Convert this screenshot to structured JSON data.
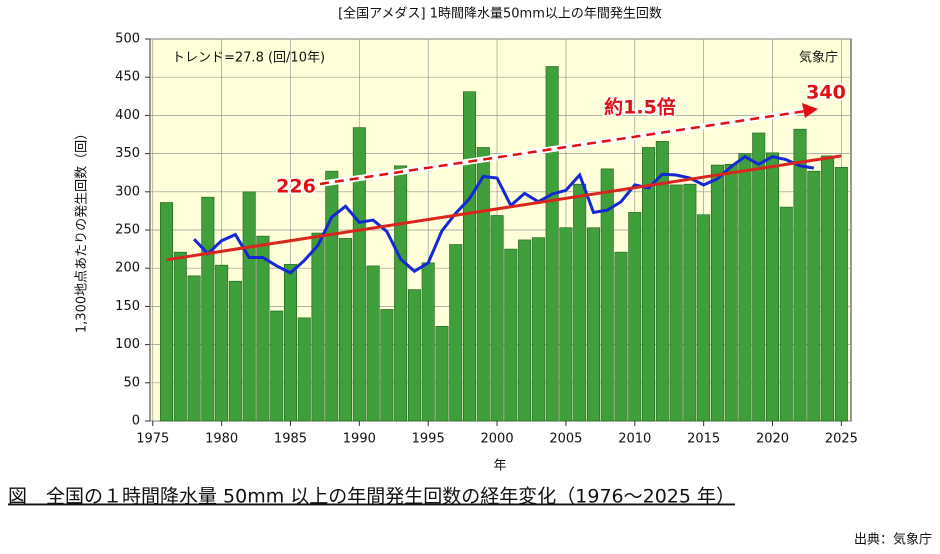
{
  "chart_data": {
    "type": "bar",
    "title": "[全国アメダス] 1時間降水量50mm以上の年間発生回数",
    "x_label": "年",
    "y_label": "1,300地点あたりの発生回数（回）",
    "trend_text": "トレンド=27.8 (回/10年)",
    "agency": "気象庁",
    "start_label": "226",
    "end_label": "340",
    "ratio_label": "約1.5倍",
    "background": "#ffffd9",
    "grid": true,
    "xlim": [
      1974.8,
      2025.7
    ],
    "xticks": [
      1975,
      1980,
      1985,
      1990,
      1995,
      2000,
      2005,
      2010,
      2015,
      2020,
      2025
    ],
    "ylim": [
      0,
      500
    ],
    "yticks": [
      0,
      50,
      100,
      150,
      200,
      250,
      300,
      350,
      400,
      450,
      500
    ],
    "series": [
      {
        "kind": "bar",
        "color": "#3f9f3a",
        "x": [
          1976,
          1977,
          1978,
          1979,
          1980,
          1981,
          1982,
          1983,
          1984,
          1985,
          1986,
          1987,
          1988,
          1989,
          1990,
          1991,
          1992,
          1993,
          1994,
          1995,
          1996,
          1997,
          1998,
          1999,
          2000,
          2001,
          2002,
          2003,
          2004,
          2005,
          2006,
          2007,
          2008,
          2009,
          2010,
          2011,
          2012,
          2013,
          2014,
          2015,
          2016,
          2017,
          2018,
          2019,
          2020,
          2021,
          2022,
          2023,
          2024,
          2025
        ],
        "values": [
          286,
          221,
          190,
          293,
          204,
          183,
          300,
          242,
          144,
          205,
          135,
          246,
          327,
          239,
          384,
          203,
          146,
          334,
          172,
          207,
          124,
          231,
          431,
          358,
          269,
          225,
          237,
          240,
          464,
          253,
          310,
          253,
          330,
          221,
          273,
          358,
          366,
          309,
          310,
          270,
          335,
          336,
          350,
          377,
          351,
          280,
          382,
          327,
          347,
          332
        ]
      },
      {
        "kind": "line",
        "color": "#1428d6",
        "x": [
          1978,
          1979,
          1980,
          1981,
          1982,
          1983,
          1984,
          1985,
          1986,
          1987,
          1988,
          1989,
          1990,
          1991,
          1992,
          1993,
          1994,
          1995,
          1996,
          1997,
          1998,
          1999,
          2000,
          2001,
          2002,
          2003,
          2004,
          2005,
          2006,
          2007,
          2008,
          2009,
          2010,
          2011,
          2012,
          2013,
          2014,
          2015,
          2016,
          2017,
          2018,
          2019,
          2020,
          2021,
          2022,
          2023
        ],
        "values": [
          238,
          219,
          236,
          244,
          214,
          214,
          203,
          194,
          210,
          230,
          267,
          281,
          260,
          263,
          248,
          212,
          196,
          207,
          249,
          272,
          291,
          320,
          318,
          282,
          298,
          287,
          297,
          302,
          322,
          273,
          276,
          287,
          309,
          305,
          323,
          322,
          318,
          309,
          317,
          333,
          346,
          336,
          346,
          342,
          334,
          331
        ]
      },
      {
        "kind": "line",
        "color": "#d8261c",
        "x": [
          1976,
          2025
        ],
        "values": [
          211,
          347
        ]
      }
    ]
  },
  "caption": "図　全国の１時間降水量 50mm 以上の年間発生回数の経年変化（1976～2025 年）",
  "source": "出典：気象庁"
}
